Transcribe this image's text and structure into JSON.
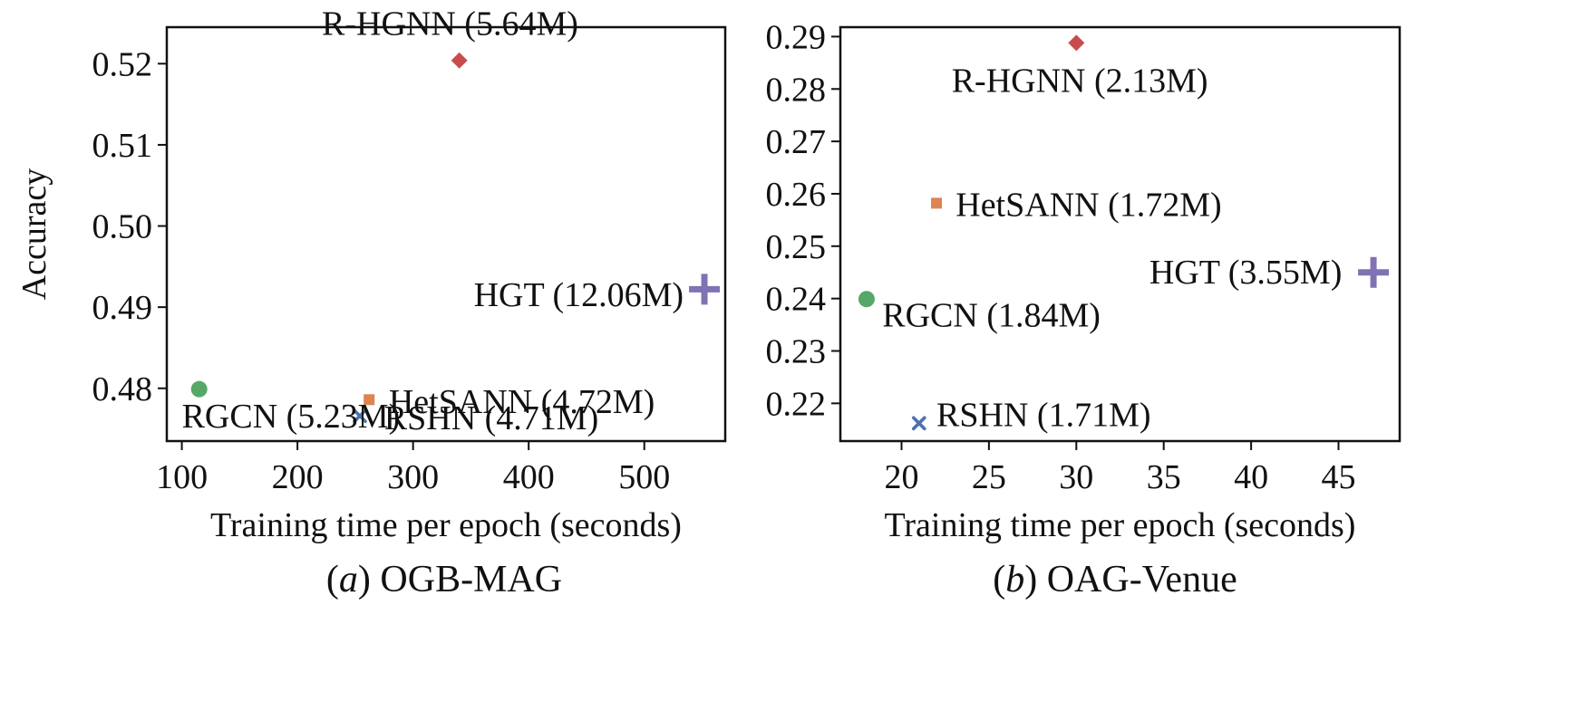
{
  "figure": {
    "panels_count": 2
  },
  "chart_data": [
    {
      "type": "scatter",
      "panel_letter": "a",
      "dataset": "OGB-MAG",
      "caption_rest": " OGB-MAG",
      "xlabel": "Training time per epoch (seconds)",
      "ylabel": "Accuracy",
      "xlim": [
        87,
        570
      ],
      "ylim": [
        0.4735,
        0.5245
      ],
      "xticks": [
        100,
        200,
        300,
        400,
        500
      ],
      "xtick_labels": [
        "100",
        "200",
        "300",
        "400",
        "500"
      ],
      "yticks": [
        0.48,
        0.49,
        0.5,
        0.51,
        0.52
      ],
      "ytick_labels": [
        "0.48",
        "0.49",
        "0.50",
        "0.51",
        "0.52"
      ],
      "points": [
        {
          "model": "R-HGNN",
          "label": "R-HGNN (5.64M)",
          "x": 340,
          "y": 0.5204,
          "marker": "diamond",
          "color": "#c94c4c",
          "label_dx": -8,
          "label_dy": 0.0046,
          "anchor": "middle"
        },
        {
          "model": "HGT",
          "label": "HGT (12.06M)",
          "x": 552,
          "y": 0.4922,
          "marker": "plus",
          "color": "#8172b3",
          "label_dx": -18,
          "label_dy": -0.0006,
          "anchor": "end"
        },
        {
          "model": "RGCN",
          "label": "RGCN (5.23M)",
          "x": 115,
          "y": 0.4799,
          "marker": "circle",
          "color": "#55a868",
          "label_dx": -15,
          "label_dy": -0.0033,
          "anchor": "start"
        },
        {
          "model": "HetSANN",
          "label": "HetSANN (4.72M)",
          "x": 262,
          "y": 0.4786,
          "marker": "square",
          "color": "#dd8452",
          "label_dx": 17,
          "label_dy": -0.0002,
          "anchor": "start"
        },
        {
          "model": "RSHN",
          "label": "RSHN (4.71M)",
          "x": 254,
          "y": 0.4766,
          "marker": "x",
          "color": "#4c72b0",
          "label_dx": 21,
          "label_dy": -0.0002,
          "anchor": "start"
        }
      ]
    },
    {
      "type": "scatter",
      "panel_letter": "b",
      "dataset": "OAG-Venue",
      "caption_rest": " OAG-Venue",
      "xlabel": "Training time per epoch (seconds)",
      "ylabel": "",
      "xlim": [
        16.5,
        48.5
      ],
      "ylim": [
        0.2128,
        0.2918
      ],
      "xticks": [
        20,
        25,
        30,
        35,
        40,
        45
      ],
      "xtick_labels": [
        "20",
        "25",
        "30",
        "35",
        "40",
        "45"
      ],
      "yticks": [
        0.22,
        0.23,
        0.24,
        0.25,
        0.26,
        0.27,
        0.28,
        0.29
      ],
      "ytick_labels": [
        "0.22",
        "0.23",
        "0.24",
        "0.25",
        "0.26",
        "0.27",
        "0.28",
        "0.29"
      ],
      "points": [
        {
          "model": "R-HGNN",
          "label": "R-HGNN (2.13M)",
          "x": 30,
          "y": 0.2888,
          "marker": "diamond",
          "color": "#c94c4c",
          "label_dx": 0.2,
          "label_dy": -0.0071,
          "anchor": "middle"
        },
        {
          "model": "HetSANN",
          "label": "HetSANN (1.72M)",
          "x": 22,
          "y": 0.2582,
          "marker": "square",
          "color": "#dd8452",
          "label_dx": 1.1,
          "label_dy": -0.0002,
          "anchor": "start"
        },
        {
          "model": "HGT",
          "label": "HGT (3.55M)",
          "x": 47,
          "y": 0.245,
          "marker": "plus",
          "color": "#8172b3",
          "label_dx": -1.8,
          "label_dy": 0.0001,
          "anchor": "end"
        },
        {
          "model": "RGCN",
          "label": "RGCN (1.84M)",
          "x": 18,
          "y": 0.2399,
          "marker": "circle",
          "color": "#55a868",
          "label_dx": 0.9,
          "label_dy": -0.003,
          "anchor": "start"
        },
        {
          "model": "RSHN",
          "label": "RSHN (1.71M)",
          "x": 21,
          "y": 0.2162,
          "marker": "x",
          "color": "#4c72b0",
          "label_dx": 1.0,
          "label_dy": 0.0017,
          "anchor": "start"
        }
      ]
    }
  ]
}
